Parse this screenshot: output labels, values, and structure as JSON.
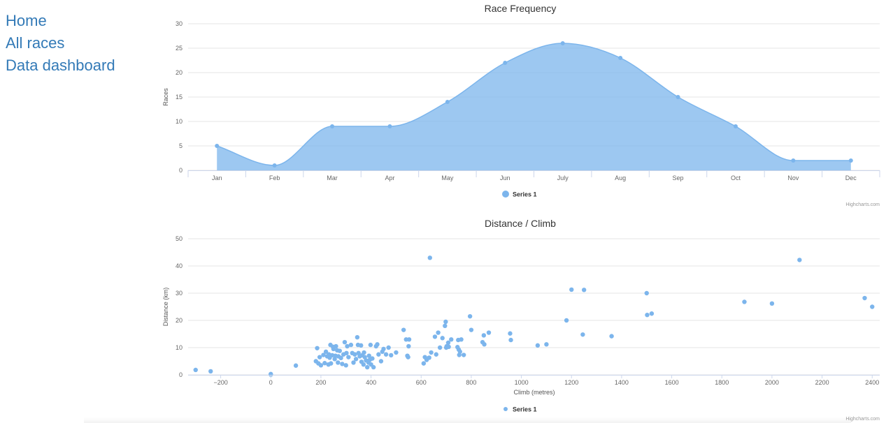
{
  "nav": {
    "items": [
      "Home",
      "All races",
      "Data dashboard"
    ]
  },
  "colors": {
    "series": "#7cb5ec",
    "area": "#99c3ef",
    "grid": "#e6e6e6",
    "axis": "#ccd6eb",
    "link": "#337ab7"
  },
  "credits": "Highcharts.com",
  "chart_data": [
    {
      "type": "area",
      "title": "Race Frequency",
      "xlabel": "",
      "ylabel": "Races",
      "categories": [
        "Jan",
        "Feb",
        "Mar",
        "Apr",
        "May",
        "Jun",
        "July",
        "Aug",
        "Sep",
        "Oct",
        "Nov",
        "Dec"
      ],
      "ylim": [
        0,
        30
      ],
      "yticks": [
        0,
        5,
        10,
        15,
        20,
        25,
        30
      ],
      "grid": true,
      "legend": "bottom-center",
      "series": [
        {
          "name": "Series 1",
          "values": [
            5,
            1,
            9,
            9,
            14,
            22,
            26,
            23,
            15,
            9,
            2,
            2
          ]
        }
      ]
    },
    {
      "type": "scatter",
      "title": "Distance / Climb",
      "xlabel": "Climb (metres)",
      "ylabel": "Distance (km)",
      "xlim": [
        -330,
        2430
      ],
      "ylim": [
        0,
        50
      ],
      "xticks": [
        -200,
        0,
        200,
        400,
        600,
        800,
        1000,
        1200,
        1400,
        1600,
        1800,
        2000,
        2200,
        2400
      ],
      "yticks": [
        0,
        10,
        20,
        30,
        40,
        50
      ],
      "grid": true,
      "legend": "bottom-center",
      "series": [
        {
          "name": "Series 1",
          "points": [
            [
              -300,
              1.8
            ],
            [
              -240,
              1.3
            ],
            [
              0,
              0.3
            ],
            [
              0,
              0.1
            ],
            [
              100,
              3.4
            ],
            [
              180,
              5
            ],
            [
              185,
              9.8
            ],
            [
              190,
              4.2
            ],
            [
              195,
              6.5
            ],
            [
              200,
              3.5
            ],
            [
              210,
              7.3
            ],
            [
              215,
              4.3
            ],
            [
              220,
              8.5
            ],
            [
              225,
              6.8
            ],
            [
              230,
              3.8
            ],
            [
              232,
              7.5
            ],
            [
              235,
              6.3
            ],
            [
              238,
              11
            ],
            [
              240,
              4.2
            ],
            [
              245,
              7.2
            ],
            [
              248,
              10.3
            ],
            [
              250,
              9.5
            ],
            [
              255,
              5.8
            ],
            [
              258,
              7
            ],
            [
              260,
              10.5
            ],
            [
              265,
              9
            ],
            [
              268,
              4.5
            ],
            [
              270,
              6.8
            ],
            [
              275,
              8.8
            ],
            [
              280,
              6.2
            ],
            [
              285,
              4
            ],
            [
              290,
              7.5
            ],
            [
              295,
              12
            ],
            [
              300,
              3.5
            ],
            [
              302,
              8
            ],
            [
              305,
              10.5
            ],
            [
              310,
              6.5
            ],
            [
              320,
              11
            ],
            [
              325,
              8
            ],
            [
              330,
              4.5
            ],
            [
              335,
              7.5
            ],
            [
              340,
              5.8
            ],
            [
              345,
              13.8
            ],
            [
              348,
              11
            ],
            [
              350,
              8
            ],
            [
              355,
              6.8
            ],
            [
              360,
              10.8
            ],
            [
              362,
              4.8
            ],
            [
              365,
              7.2
            ],
            [
              370,
              3.8
            ],
            [
              372,
              8.2
            ],
            [
              375,
              6.5
            ],
            [
              380,
              5.3
            ],
            [
              385,
              2.8
            ],
            [
              390,
              4.5
            ],
            [
              392,
              7
            ],
            [
              395,
              5.5
            ],
            [
              398,
              11
            ],
            [
              400,
              3.8
            ],
            [
              405,
              6
            ],
            [
              410,
              2.8
            ],
            [
              420,
              10.5
            ],
            [
              425,
              11.2
            ],
            [
              430,
              7.5
            ],
            [
              440,
              5
            ],
            [
              445,
              8.5
            ],
            [
              450,
              9.5
            ],
            [
              460,
              7.5
            ],
            [
              470,
              10
            ],
            [
              480,
              7.2
            ],
            [
              500,
              8.2
            ],
            [
              530,
              16.5
            ],
            [
              540,
              13
            ],
            [
              545,
              7
            ],
            [
              548,
              6.5
            ],
            [
              550,
              10.5
            ],
            [
              552,
              13
            ],
            [
              610,
              4.2
            ],
            [
              615,
              6.5
            ],
            [
              622,
              5.5
            ],
            [
              632,
              6.3
            ],
            [
              635,
              43
            ],
            [
              640,
              8.2
            ],
            [
              655,
              14
            ],
            [
              660,
              7.5
            ],
            [
              668,
              15.5
            ],
            [
              675,
              10
            ],
            [
              685,
              13.5
            ],
            [
              695,
              18
            ],
            [
              698,
              19.5
            ],
            [
              700,
              10
            ],
            [
              702,
              10.5
            ],
            [
              708,
              11.8
            ],
            [
              710,
              10.3
            ],
            [
              720,
              13
            ],
            [
              745,
              10.2
            ],
            [
              748,
              12.8
            ],
            [
              750,
              9.3
            ],
            [
              752,
              7.3
            ],
            [
              755,
              8.5
            ],
            [
              760,
              13
            ],
            [
              770,
              7.3
            ],
            [
              795,
              21.5
            ],
            [
              800,
              16.5
            ],
            [
              845,
              12
            ],
            [
              850,
              14.5
            ],
            [
              852,
              11.2
            ],
            [
              870,
              15.5
            ],
            [
              955,
              15.2
            ],
            [
              958,
              12.8
            ],
            [
              1065,
              10.8
            ],
            [
              1100,
              11.2
            ],
            [
              1180,
              20
            ],
            [
              1200,
              31.3
            ],
            [
              1245,
              14.8
            ],
            [
              1250,
              31.2
            ],
            [
              1360,
              14.2
            ],
            [
              1500,
              30
            ],
            [
              1502,
              22
            ],
            [
              1520,
              22.5
            ],
            [
              1890,
              26.8
            ],
            [
              2000,
              26.2
            ],
            [
              2110,
              42.2
            ],
            [
              2370,
              28.2
            ],
            [
              2400,
              25
            ]
          ]
        }
      ]
    }
  ]
}
